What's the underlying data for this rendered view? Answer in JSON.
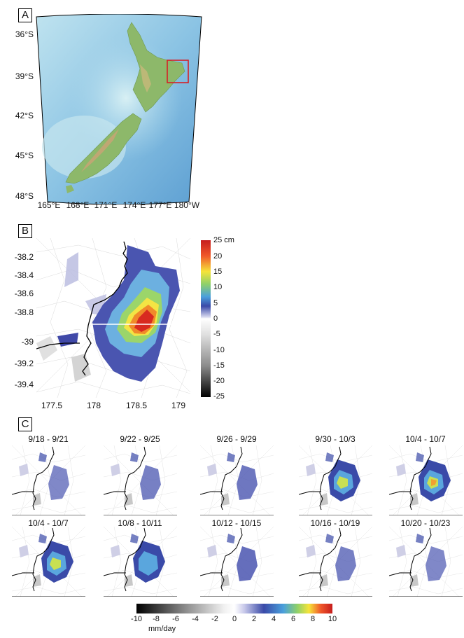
{
  "panel_a": {
    "letter": "A",
    "lat_labels": [
      "36°S",
      "39°S",
      "42°S",
      "45°S",
      "48°S"
    ],
    "lon_labels": [
      "165°E",
      "168°E",
      "171°E",
      "174°E",
      "177°E",
      "180°W"
    ]
  },
  "panel_b": {
    "letter": "B",
    "y_ticks": [
      "-38.2",
      "-38.4",
      "-38.6",
      "-38.8",
      "-39",
      "-39.2",
      "-39.4"
    ],
    "x_ticks": [
      "177.5",
      "178",
      "178.5",
      "179"
    ],
    "colorbar_labels": [
      "25 cm",
      "20",
      "15",
      "10",
      "5",
      "0",
      "-5",
      "-10",
      "-15",
      "-20",
      "-25"
    ]
  },
  "panel_c": {
    "letter": "C",
    "periods": [
      "9/18 - 9/21",
      "9/22 - 9/25",
      "9/26 - 9/29",
      "9/30 - 10/3",
      "10/4 - 10/7",
      "10/4 - 10/7",
      "10/8 - 10/11",
      "10/12 - 10/15",
      "10/16 - 10/19",
      "10/20 - 10/23"
    ],
    "intensity": [
      0.25,
      0.3,
      0.35,
      0.65,
      0.8,
      0.7,
      0.6,
      0.4,
      0.3,
      0.25
    ],
    "colorbar_labels": [
      "-10",
      "-8",
      "-6",
      "-4",
      "-2",
      "0",
      "2",
      "4",
      "6",
      "8",
      "10"
    ],
    "colorbar_unit": "mm/day"
  }
}
